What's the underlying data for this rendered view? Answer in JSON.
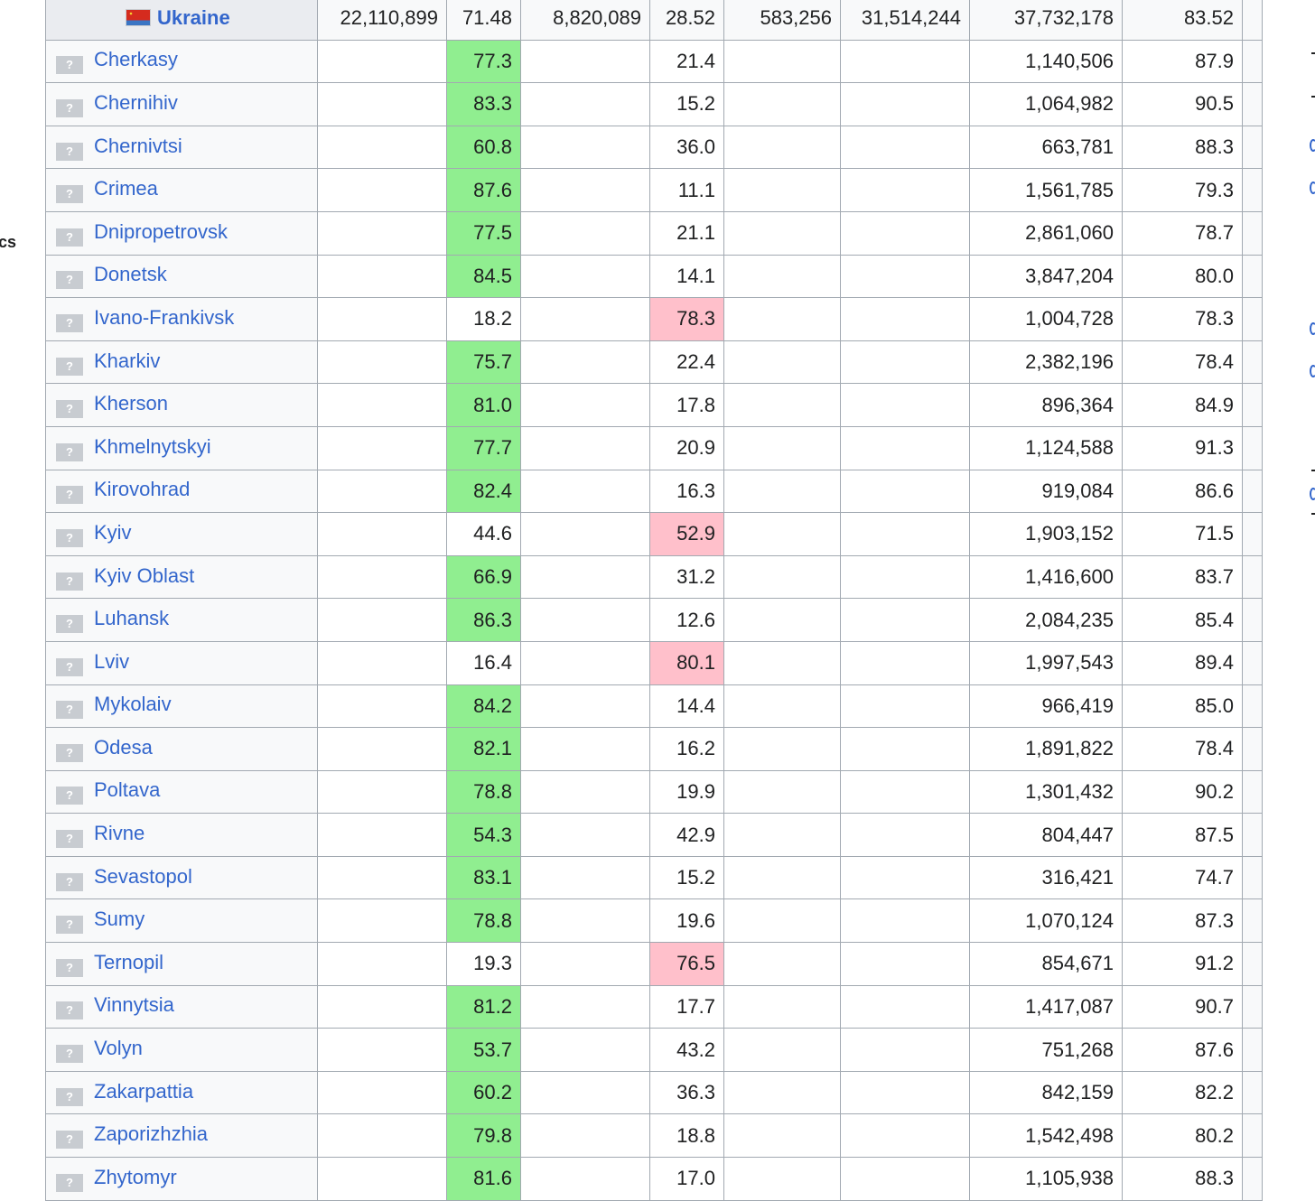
{
  "sidebar": {
    "edge_text": "cs"
  },
  "total": {
    "name": "Ukraine",
    "yes_votes": "22,110,899",
    "yes_pct": "71.48",
    "no_votes": "8,820,089",
    "no_pct": "28.52",
    "invalid": "583,256",
    "total_votes": "31,514,244",
    "electorate": "37,732,178",
    "turnout": "83.52"
  },
  "placeholder_glyph": "?",
  "colors": {
    "yes_win": "#90ee90",
    "no_win": "#ffc0cb",
    "link": "#3366cc"
  },
  "regions": [
    {
      "name": "Cherkasy",
      "yes_pct": "77.3",
      "no_pct": "21.4",
      "electorate": "1,140,506",
      "turnout": "87.9",
      "winner": "yes"
    },
    {
      "name": "Chernihiv",
      "yes_pct": "83.3",
      "no_pct": "15.2",
      "electorate": "1,064,982",
      "turnout": "90.5",
      "winner": "yes"
    },
    {
      "name": "Chernivtsi",
      "yes_pct": "60.8",
      "no_pct": "36.0",
      "electorate": "663,781",
      "turnout": "88.3",
      "winner": "yes"
    },
    {
      "name": "Crimea",
      "yes_pct": "87.6",
      "no_pct": "11.1",
      "electorate": "1,561,785",
      "turnout": "79.3",
      "winner": "yes"
    },
    {
      "name": "Dnipropetrovsk",
      "yes_pct": "77.5",
      "no_pct": "21.1",
      "electorate": "2,861,060",
      "turnout": "78.7",
      "winner": "yes"
    },
    {
      "name": "Donetsk",
      "yes_pct": "84.5",
      "no_pct": "14.1",
      "electorate": "3,847,204",
      "turnout": "80.0",
      "winner": "yes"
    },
    {
      "name": "Ivano-Frankivsk",
      "yes_pct": "18.2",
      "no_pct": "78.3",
      "electorate": "1,004,728",
      "turnout": "78.3",
      "winner": "no"
    },
    {
      "name": "Kharkiv",
      "yes_pct": "75.7",
      "no_pct": "22.4",
      "electorate": "2,382,196",
      "turnout": "78.4",
      "winner": "yes"
    },
    {
      "name": "Kherson",
      "yes_pct": "81.0",
      "no_pct": "17.8",
      "electorate": "896,364",
      "turnout": "84.9",
      "winner": "yes"
    },
    {
      "name": "Khmelnytskyi",
      "yes_pct": "77.7",
      "no_pct": "20.9",
      "electorate": "1,124,588",
      "turnout": "91.3",
      "winner": "yes"
    },
    {
      "name": "Kirovohrad",
      "yes_pct": "82.4",
      "no_pct": "16.3",
      "electorate": "919,084",
      "turnout": "86.6",
      "winner": "yes"
    },
    {
      "name": "Kyiv",
      "yes_pct": "44.6",
      "no_pct": "52.9",
      "electorate": "1,903,152",
      "turnout": "71.5",
      "winner": "no"
    },
    {
      "name": "Kyiv Oblast",
      "yes_pct": "66.9",
      "no_pct": "31.2",
      "electorate": "1,416,600",
      "turnout": "83.7",
      "winner": "yes"
    },
    {
      "name": "Luhansk",
      "yes_pct": "86.3",
      "no_pct": "12.6",
      "electorate": "2,084,235",
      "turnout": "85.4",
      "winner": "yes"
    },
    {
      "name": "Lviv",
      "yes_pct": "16.4",
      "no_pct": "80.1",
      "electorate": "1,997,543",
      "turnout": "89.4",
      "winner": "no"
    },
    {
      "name": "Mykolaiv",
      "yes_pct": "84.2",
      "no_pct": "14.4",
      "electorate": "966,419",
      "turnout": "85.0",
      "winner": "yes"
    },
    {
      "name": "Odesa",
      "yes_pct": "82.1",
      "no_pct": "16.2",
      "electorate": "1,891,822",
      "turnout": "78.4",
      "winner": "yes"
    },
    {
      "name": "Poltava",
      "yes_pct": "78.8",
      "no_pct": "19.9",
      "electorate": "1,301,432",
      "turnout": "90.2",
      "winner": "yes"
    },
    {
      "name": "Rivne",
      "yes_pct": "54.3",
      "no_pct": "42.9",
      "electorate": "804,447",
      "turnout": "87.5",
      "winner": "yes"
    },
    {
      "name": "Sevastopol",
      "yes_pct": "83.1",
      "no_pct": "15.2",
      "electorate": "316,421",
      "turnout": "74.7",
      "winner": "yes"
    },
    {
      "name": "Sumy",
      "yes_pct": "78.8",
      "no_pct": "19.6",
      "electorate": "1,070,124",
      "turnout": "87.3",
      "winner": "yes"
    },
    {
      "name": "Ternopil",
      "yes_pct": "19.3",
      "no_pct": "76.5",
      "electorate": "854,671",
      "turnout": "91.2",
      "winner": "no"
    },
    {
      "name": "Vinnytsia",
      "yes_pct": "81.2",
      "no_pct": "17.7",
      "electorate": "1,417,087",
      "turnout": "90.7",
      "winner": "yes"
    },
    {
      "name": "Volyn",
      "yes_pct": "53.7",
      "no_pct": "43.2",
      "electorate": "751,268",
      "turnout": "87.6",
      "winner": "yes"
    },
    {
      "name": "Zakarpattia",
      "yes_pct": "60.2",
      "no_pct": "36.3",
      "electorate": "842,159",
      "turnout": "82.2",
      "winner": "yes"
    },
    {
      "name": "Zaporizhzhia",
      "yes_pct": "79.8",
      "no_pct": "18.8",
      "electorate": "1,542,498",
      "turnout": "80.2",
      "winner": "yes"
    },
    {
      "name": "Zhytomyr",
      "yes_pct": "81.6",
      "no_pct": "17.0",
      "electorate": "1,105,938",
      "turnout": "88.3",
      "winner": "yes"
    }
  ]
}
